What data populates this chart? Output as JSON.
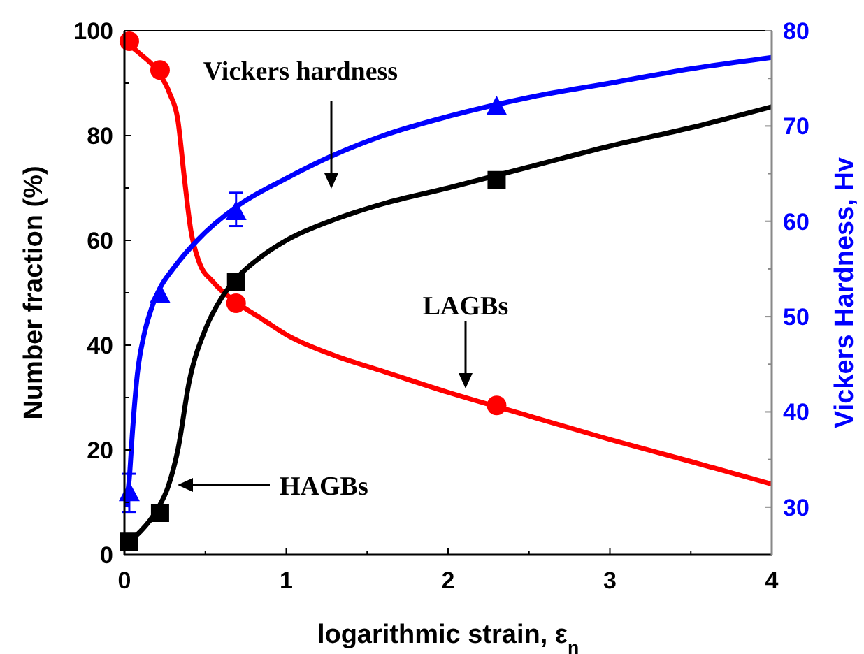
{
  "chart_data": {
    "type": "scatter",
    "xlabel": "logarithmic strain, ε$_{n}$",
    "ylabel": "Number fraction (%)",
    "y2label": "Vickers Hardness, Hv",
    "xlim": [
      0,
      4
    ],
    "xticks": [
      0,
      {
        "value": 0.5,
        "label": null
      },
      1,
      {
        "value": 1.5,
        "label": null
      },
      2,
      {
        "value": 2.5,
        "label": null
      },
      3,
      {
        "value": 3.5,
        "label": null
      },
      4
    ],
    "ylim": [
      0,
      100
    ],
    "yticks": [
      0,
      {
        "value": 10,
        "label": null
      },
      20,
      {
        "value": 30,
        "label": null
      },
      40,
      {
        "value": 50,
        "label": null
      },
      60,
      {
        "value": 70,
        "label": null
      },
      80,
      {
        "value": 90,
        "label": null
      },
      100
    ],
    "y2lim": [
      25,
      80
    ],
    "y2ticks": [
      30,
      {
        "value": 35,
        "label": null
      },
      40,
      {
        "value": 45,
        "label": null
      },
      50,
      {
        "value": 55,
        "label": null
      },
      60,
      {
        "value": 65,
        "label": null
      },
      70,
      {
        "value": 75,
        "label": null
      },
      80
    ],
    "grid": false,
    "series": [
      {
        "type": "line",
        "color": "#ff0000",
        "marker": "none",
        "x": [
          0,
          0.1,
          0.2,
          0.28,
          0.33,
          0.37,
          0.41,
          0.46,
          0.55,
          0.7,
          0.85,
          1,
          1.3,
          1.6,
          2,
          2.5,
          3,
          3.5,
          4
        ],
        "values": [
          98,
          95.5,
          92.5,
          88,
          83,
          72,
          62,
          56,
          52,
          48,
          45,
          42,
          38,
          35,
          31,
          26.5,
          22,
          17.8,
          13.5
        ]
      },
      {
        "type": "line",
        "color": "#000000",
        "marker": "none",
        "x": [
          0,
          0.1,
          0.2,
          0.27,
          0.33,
          0.4,
          0.5,
          0.6,
          0.7,
          0.85,
          1,
          1.3,
          1.6,
          2,
          2.5,
          3,
          3.5,
          4
        ],
        "values": [
          2,
          4.5,
          8.5,
          13,
          20,
          33,
          43,
          49,
          53,
          57,
          60,
          64,
          67,
          70,
          74,
          78,
          81.5,
          85.5
        ]
      },
      {
        "type": "line",
        "color": "#0000ff",
        "marker": "none",
        "axis": "y2",
        "x": [
          0.01,
          0.03,
          0.05,
          0.08,
          0.12,
          0.17,
          0.22,
          0.3,
          0.45,
          0.69,
          1,
          1.3,
          1.6,
          2,
          2.5,
          3,
          3.5,
          4
        ],
        "values": [
          30,
          33,
          38,
          44,
          48,
          51,
          53,
          55,
          58,
          61.5,
          64.5,
          67,
          69,
          71,
          73,
          74.5,
          76,
          77.2
        ]
      },
      {
        "color": "#ff0000",
        "marker": "circle",
        "x": [
          0.03,
          0.22,
          0.69,
          2.3
        ],
        "values": [
          98,
          92.5,
          48,
          28.5
        ]
      },
      {
        "color": "#000000",
        "marker": "square",
        "x": [
          0.03,
          0.22,
          0.69,
          2.3
        ],
        "values": [
          2.5,
          8,
          52,
          71.5
        ]
      },
      {
        "color": "#0000ff",
        "marker": "triangle",
        "axis": "y2",
        "x": [
          0.03,
          0.22,
          0.69,
          2.3
        ],
        "values": [
          31.5,
          52.3,
          61,
          72
        ],
        "errors": [
          [
            29.5,
            33.5
          ],
          null,
          [
            59.5,
            63
          ],
          null
        ]
      }
    ],
    "annotations": [
      "Vickers hardness",
      "LAGBs",
      "HAGBs"
    ]
  }
}
